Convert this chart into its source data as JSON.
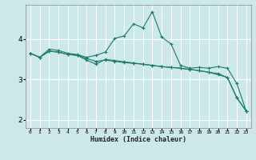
{
  "xlabel": "Humidex (Indice chaleur)",
  "background_color": "#cce8e8",
  "grid_color": "#ffffff",
  "line_color": "#1a7a6e",
  "xlim": [
    -0.5,
    23.5
  ],
  "ylim": [
    1.8,
    4.85
  ],
  "yticks": [
    2,
    3,
    4
  ],
  "xticks": [
    0,
    1,
    2,
    3,
    4,
    5,
    6,
    7,
    8,
    9,
    10,
    11,
    12,
    13,
    14,
    15,
    16,
    17,
    18,
    19,
    20,
    21,
    22,
    23
  ],
  "figsize": [
    3.2,
    2.0
  ],
  "dpi": 100,
  "series": [
    {
      "x": [
        0,
        1,
        2,
        3,
        4,
        5,
        6,
        7,
        8,
        9,
        10,
        11,
        12,
        13,
        14,
        15,
        16,
        17,
        18,
        19,
        20,
        21,
        22,
        23
      ],
      "y": [
        3.65,
        3.55,
        3.75,
        3.72,
        3.65,
        3.62,
        3.55,
        3.6,
        3.68,
        4.02,
        4.08,
        4.38,
        4.28,
        4.68,
        4.05,
        3.88,
        3.35,
        3.28,
        3.3,
        3.28,
        3.32,
        3.28,
        2.9,
        2.22
      ]
    },
    {
      "x": [
        0,
        1,
        2,
        3,
        4,
        5,
        6,
        7,
        8,
        9,
        10,
        11,
        12,
        13,
        14,
        15,
        16,
        17,
        18,
        19,
        20,
        21,
        22,
        23
      ],
      "y": [
        3.65,
        3.55,
        3.7,
        3.68,
        3.62,
        3.6,
        3.52,
        3.45,
        3.48,
        3.45,
        3.42,
        3.4,
        3.38,
        3.35,
        3.32,
        3.3,
        3.28,
        3.25,
        3.22,
        3.18,
        3.12,
        3.05,
        2.55,
        2.22
      ]
    },
    {
      "x": [
        0,
        1,
        2,
        3,
        4,
        5,
        6,
        7,
        8,
        9,
        10,
        11,
        12,
        13,
        14,
        15,
        16,
        17,
        18,
        19,
        20,
        21,
        22,
        23
      ],
      "y": [
        3.65,
        3.55,
        3.7,
        3.68,
        3.62,
        3.6,
        3.48,
        3.38,
        3.5,
        3.47,
        3.44,
        3.41,
        3.38,
        3.35,
        3.32,
        3.3,
        3.28,
        3.25,
        3.22,
        3.18,
        3.15,
        3.05,
        2.55,
        2.22
      ]
    }
  ]
}
